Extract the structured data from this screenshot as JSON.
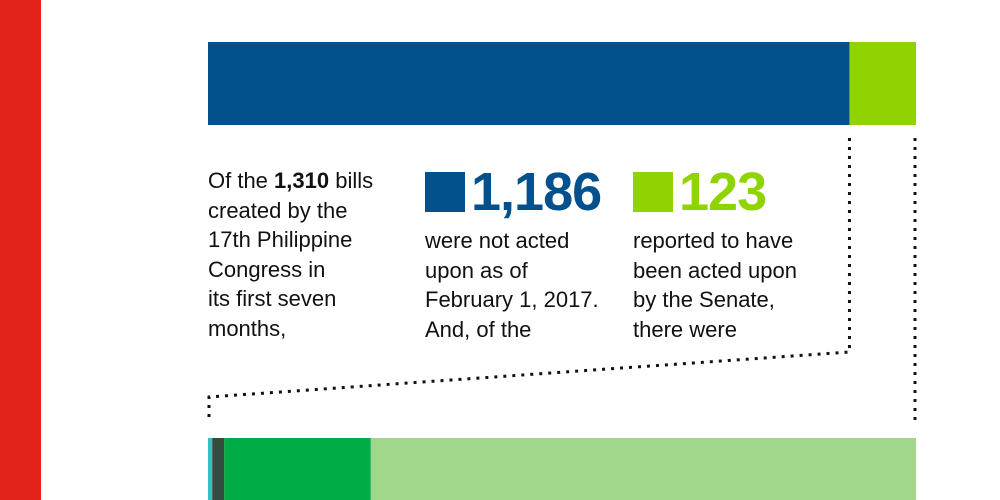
{
  "colors": {
    "accent_stripe": "#e3231b",
    "not_acted": "#02518c",
    "acted": "#8fd400",
    "detail_teal": "#31c1c1",
    "detail_dark": "#354b3d",
    "detail_green": "#00ac45",
    "detail_light": "#a1d78b"
  },
  "intro": {
    "pre": "Of the ",
    "total_text": "1,310",
    "post": " bills\ncreated by the\n17th Philippine\nCongress in\nits first seven\nmonths,"
  },
  "not_acted": {
    "number": "1,186",
    "text": "were not acted\nupon as of\nFebruary 1, 2017.\nAnd, of the"
  },
  "acted": {
    "number": "123",
    "text": "reported to have\nbeen acted upon\nby the Senate,\nthere were"
  },
  "chart_data": [
    {
      "type": "bar",
      "orientation": "horizontal-stacked",
      "total": 1310,
      "series": [
        {
          "name": "",
          "value": 1186,
          "color": "#02518c"
        },
        {
          "name": "",
          "value": 123,
          "color": "#8fd400"
        }
      ]
    },
    {
      "type": "bar",
      "orientation": "horizontal-stacked",
      "note": "detail bar, partially visible",
      "series": [
        {
          "name": "",
          "fraction": 0.006,
          "color": "#31c1c1"
        },
        {
          "name": "",
          "fraction": 0.017,
          "color": "#354b3d"
        },
        {
          "name": "",
          "fraction": 0.207,
          "color": "#00ac45"
        },
        {
          "name": "",
          "fraction": 0.77,
          "color": "#a1d78b"
        }
      ]
    }
  ]
}
